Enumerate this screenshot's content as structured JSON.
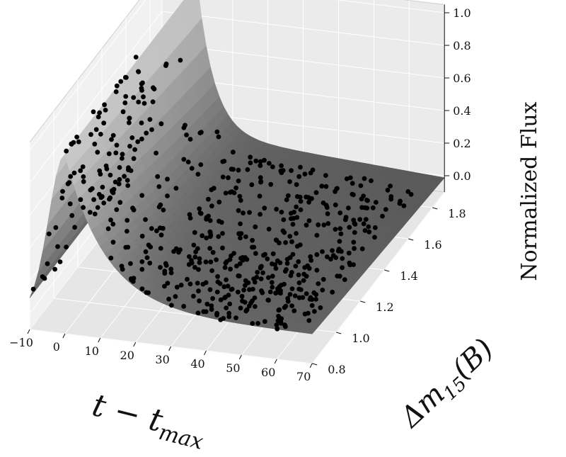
{
  "chart_data": {
    "type": "surface3d-scatter",
    "title": "",
    "xlabel": "t − t",
    "xlabel_sub": "max",
    "ylabel": "Δm",
    "ylabel_sub": "15",
    "ylabel_suffix": "(B)",
    "zlabel": "Normalized Flux",
    "x_ticks": [
      "−10",
      "0",
      "10",
      "20",
      "30",
      "40",
      "50",
      "60",
      "70"
    ],
    "y_ticks": [
      "0.8",
      "1.0",
      "1.2",
      "1.4",
      "1.6",
      "1.8"
    ],
    "z_ticks": [
      "0.0",
      "0.2",
      "0.4",
      "0.6",
      "0.8",
      "1.0"
    ],
    "xlim": [
      -10,
      70
    ],
    "ylim": [
      0.8,
      1.9
    ],
    "zlim": [
      -0.1,
      1.05
    ],
    "surface_model": "flux(t, dm15) ≈ gaussian rise peaking at t=0 then exponential decline; faster decline for larger dm15",
    "scatter_note": "black points are observed light-curve samples lying on/near the surface",
    "colors": {
      "points": "#000000",
      "surface_light": "#c8c8c8",
      "surface_dark": "#5a5a5a",
      "panes": "#ececec"
    }
  }
}
